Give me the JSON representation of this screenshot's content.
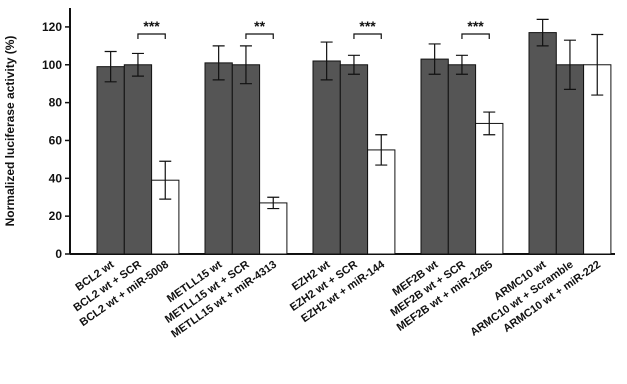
{
  "chart_data": {
    "type": "bar",
    "y_label": "Normalized luciferase activity (%)",
    "categories": [
      "BCL2 wt",
      "BCL2 wt + SCR",
      "BCL2 wt + miR-5008",
      "METLL15 wt",
      "METLL15 wt + SCR",
      "METLL15 wt + miR-4313",
      "EZH2 wt",
      "EZH2 wt + SCR",
      "EZH2 wt + miR-144",
      "MEF2B wt",
      "MEF2B wt + SCR",
      "MEF2B wt + miR-1265",
      "ARMC10 wt",
      "ARMC10 wt + Scramble",
      "ARMC10 wt + miR-222"
    ],
    "values": [
      99,
      100,
      39,
      101,
      100,
      27,
      102,
      100,
      55,
      103,
      100,
      69,
      117,
      100,
      100
    ],
    "errors": [
      8,
      6,
      10,
      9,
      10,
      3,
      10,
      5,
      8,
      8,
      5,
      6,
      7,
      13,
      16
    ],
    "colors": [
      "#555555",
      "#555555",
      "#ffffff",
      "#555555",
      "#555555",
      "#ffffff",
      "#555555",
      "#555555",
      "#ffffff",
      "#555555",
      "#555555",
      "#ffffff",
      "#555555",
      "#555555",
      "#ffffff"
    ],
    "annotations": [
      "***",
      "**",
      "***",
      "***",
      null
    ],
    "ylim": [
      0,
      130
    ],
    "yticks": [
      0,
      20,
      40,
      60,
      80,
      100,
      120
    ]
  }
}
